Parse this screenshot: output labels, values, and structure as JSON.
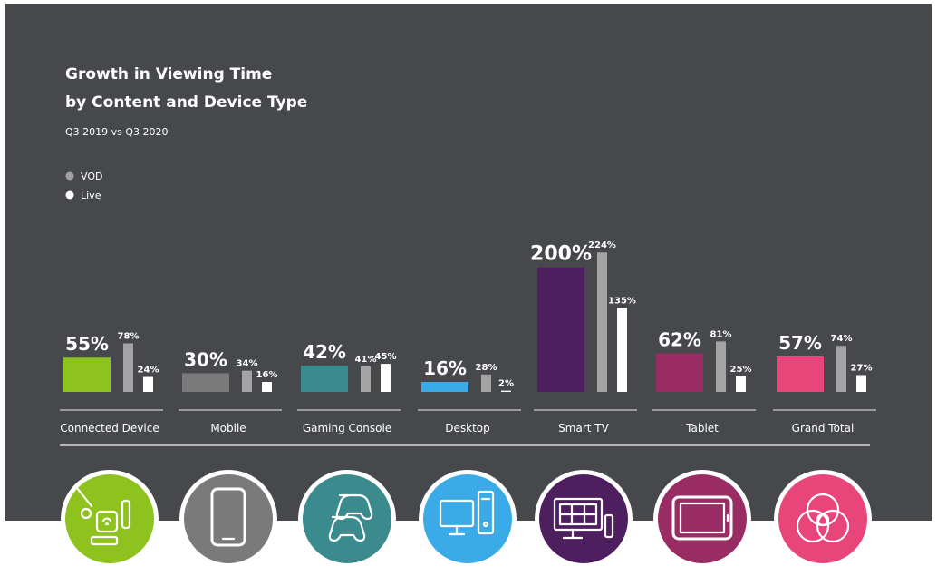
{
  "chart_data": {
    "type": "bar",
    "title_lines": [
      "Growth in Viewing Time",
      "by Content and Device Type"
    ],
    "subtitle": "Q3 2019 vs Q3 2020",
    "categories": [
      "Connected Device",
      "Mobile",
      "Gaming Console",
      "Desktop",
      "Smart TV",
      "Tablet",
      "Grand Total"
    ],
    "series": [
      {
        "name": "",
        "values": [
          55,
          30,
          42,
          16,
          200,
          62,
          57
        ],
        "labels": [
          "55%",
          "30%",
          "42%",
          "16%",
          "200%",
          "62%",
          "57%"
        ]
      },
      {
        "name": "VOD",
        "values": [
          78,
          34,
          41,
          28,
          224,
          81,
          74
        ],
        "labels": [
          "78%",
          "34%",
          "41%",
          "28%",
          "224%",
          "81%",
          "74%"
        ]
      },
      {
        "name": "Live",
        "values": [
          24,
          16,
          45,
          2,
          135,
          25,
          27
        ],
        "labels": [
          "24%",
          "16%",
          "45%",
          "2%",
          "135%",
          "25%",
          "27%"
        ]
      }
    ],
    "legend": [
      "VOD",
      "Live"
    ],
    "legend_position": "top-left",
    "grid": false,
    "colors": {
      "background": "#46484b",
      "vod": "#a3a3a3",
      "live": "#ffffff",
      "categories": [
        "#8dc21f",
        "#7a7a7a",
        "#3a8a8e",
        "#3aabe6",
        "#4e1f5e",
        "#9a2c64",
        "#e8457a"
      ]
    },
    "icons": [
      "connected-device-icon",
      "mobile-phone-icon",
      "gamepad-icon",
      "desktop-computer-icon",
      "smart-tv-icon",
      "tablet-icon",
      "grand-total-icon"
    ]
  }
}
